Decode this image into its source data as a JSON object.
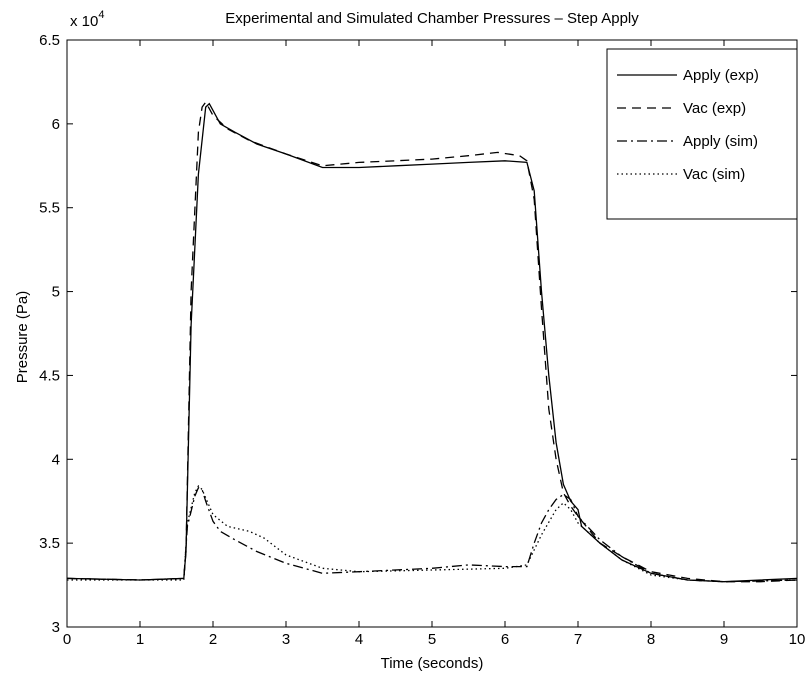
{
  "chart_data": {
    "type": "line",
    "title": "Experimental and Simulated Chamber Pressures – Step Apply",
    "xlabel": "Time (seconds)",
    "ylabel": "Pressure (Pa)",
    "y_exponent_label": "x 10",
    "y_exponent_power": "4",
    "xlim": [
      0,
      10
    ],
    "ylim": [
      3,
      6.5
    ],
    "x_ticks": [
      0,
      1,
      2,
      3,
      4,
      5,
      6,
      7,
      8,
      9,
      10
    ],
    "x_tick_labels": [
      "0",
      "1",
      "2",
      "3",
      "4",
      "5",
      "6",
      "7",
      "8",
      "9",
      "10"
    ],
    "y_ticks": [
      3,
      3.5,
      4,
      4.5,
      5,
      5.5,
      6,
      6.5
    ],
    "y_tick_labels": [
      "3",
      "3.5",
      "4",
      "4.5",
      "5",
      "5.5",
      "6",
      "6.5"
    ],
    "grid": false,
    "legend_position": "top-right",
    "series": [
      {
        "name": "Apply (exp)",
        "dash": "none",
        "x": [
          0,
          1.0,
          1.6,
          1.63,
          1.7,
          1.8,
          1.9,
          1.95,
          2.0,
          2.1,
          2.3,
          2.6,
          3.0,
          3.5,
          4.0,
          4.5,
          5.0,
          5.5,
          6.0,
          6.3,
          6.4,
          6.5,
          6.6,
          6.7,
          6.8,
          6.9,
          7.0,
          7.05,
          7.3,
          7.6,
          8.0,
          8.5,
          9.0,
          9.5,
          10
        ],
        "y": [
          3.29,
          3.28,
          3.29,
          3.45,
          4.8,
          5.7,
          6.1,
          6.12,
          6.08,
          6.0,
          5.95,
          5.88,
          5.82,
          5.74,
          5.74,
          5.75,
          5.76,
          5.77,
          5.78,
          5.77,
          5.6,
          5.0,
          4.5,
          4.1,
          3.85,
          3.75,
          3.7,
          3.6,
          3.5,
          3.4,
          3.32,
          3.28,
          3.27,
          3.28,
          3.29
        ]
      },
      {
        "name": "Vac (exp)",
        "dash": "9,6",
        "x": [
          0,
          1.0,
          1.6,
          1.63,
          1.7,
          1.8,
          1.85,
          1.9,
          2.0,
          2.2,
          2.5,
          3.0,
          3.5,
          4.0,
          4.5,
          5.0,
          5.5,
          5.9,
          6.2,
          6.3,
          6.4,
          6.5,
          6.6,
          6.7,
          6.8,
          6.9,
          7.0,
          7.3,
          7.6,
          8.0,
          8.5,
          9.0,
          9.5,
          10
        ],
        "y": [
          3.29,
          3.28,
          3.29,
          3.45,
          5.0,
          5.95,
          6.1,
          6.13,
          6.05,
          5.97,
          5.9,
          5.82,
          5.75,
          5.77,
          5.78,
          5.79,
          5.81,
          5.83,
          5.81,
          5.78,
          5.55,
          4.9,
          4.3,
          4.0,
          3.8,
          3.72,
          3.66,
          3.5,
          3.42,
          3.33,
          3.29,
          3.27,
          3.27,
          3.28
        ]
      },
      {
        "name": "Apply (sim)",
        "dash": "10,4,2,4",
        "x": [
          0,
          1.0,
          1.6,
          1.65,
          1.75,
          1.8,
          1.85,
          1.9,
          2.0,
          2.1,
          2.3,
          2.6,
          3.0,
          3.5,
          4.0,
          5.0,
          5.5,
          6.0,
          6.3,
          6.4,
          6.5,
          6.6,
          6.7,
          6.8,
          6.9,
          7.0,
          7.3,
          7.6,
          8.0,
          8.5,
          9.0,
          10
        ],
        "y": [
          3.29,
          3.28,
          3.29,
          3.6,
          3.78,
          3.83,
          3.82,
          3.75,
          3.63,
          3.57,
          3.52,
          3.45,
          3.38,
          3.32,
          3.33,
          3.35,
          3.37,
          3.36,
          3.36,
          3.5,
          3.62,
          3.7,
          3.76,
          3.79,
          3.76,
          3.66,
          3.52,
          3.42,
          3.32,
          3.28,
          3.27,
          3.28
        ]
      },
      {
        "name": "Vac (sim)",
        "dash": "1.5,3",
        "x": [
          0,
          1.0,
          1.6,
          1.65,
          1.75,
          1.8,
          1.85,
          1.9,
          2.0,
          2.2,
          2.5,
          2.7,
          3.0,
          3.5,
          4.0,
          5.0,
          6.0,
          6.3,
          6.5,
          6.7,
          6.8,
          6.9,
          7.0,
          7.3,
          7.6,
          8.0,
          8.5,
          9.0,
          10
        ],
        "y": [
          3.28,
          3.28,
          3.28,
          3.62,
          3.8,
          3.84,
          3.82,
          3.77,
          3.67,
          3.6,
          3.57,
          3.53,
          3.43,
          3.35,
          3.33,
          3.34,
          3.35,
          3.37,
          3.55,
          3.7,
          3.74,
          3.7,
          3.62,
          3.5,
          3.4,
          3.31,
          3.28,
          3.27,
          3.28
        ]
      }
    ]
  }
}
